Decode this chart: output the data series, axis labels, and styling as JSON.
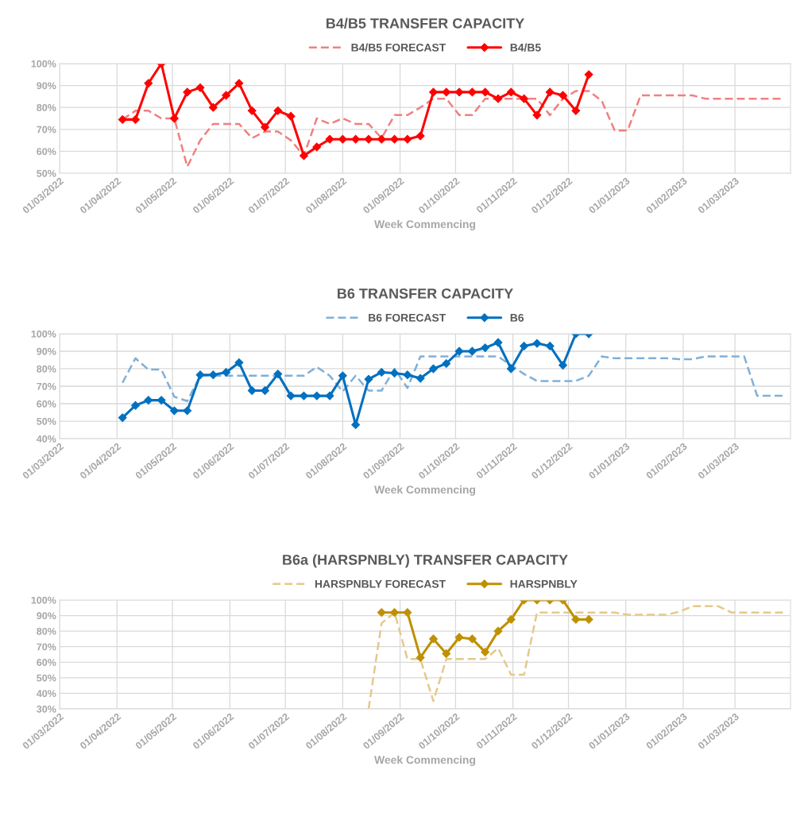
{
  "chart_data": [
    {
      "type": "line",
      "title": "B4/B5 TRANSFER CAPACITY",
      "xlabel": "Week Commencing",
      "legend": "top",
      "grid": true,
      "xlim": [
        "2022-03-01",
        "2023-03-31"
      ],
      "xticks": [
        {
          "value": "2022-03-01",
          "label": "01/03/2022"
        },
        {
          "value": "2022-04-01",
          "label": "01/04/2022"
        },
        {
          "value": "2022-05-01",
          "label": "01/05/2022"
        },
        {
          "value": "2022-06-01",
          "label": "01/06/2022"
        },
        {
          "value": "2022-07-01",
          "label": "01/07/2022"
        },
        {
          "value": "2022-08-01",
          "label": "01/08/2022"
        },
        {
          "value": "2022-09-01",
          "label": "01/09/2022"
        },
        {
          "value": "2022-10-01",
          "label": "01/10/2022"
        },
        {
          "value": "2022-11-01",
          "label": "01/11/2022"
        },
        {
          "value": "2022-12-01",
          "label": "01/12/2022"
        },
        {
          "value": "2023-01-01",
          "label": "01/01/2023"
        },
        {
          "value": "2023-02-01",
          "label": "01/02/2023"
        },
        {
          "value": "2023-03-01",
          "label": "01/03/2023"
        }
      ],
      "ylim": [
        50,
        100
      ],
      "yticks": [
        {
          "value": 50,
          "label": "50%"
        },
        {
          "value": 60,
          "label": "60%"
        },
        {
          "value": 70,
          "label": "70%"
        },
        {
          "value": 80,
          "label": "80%"
        },
        {
          "value": 90,
          "label": "90%"
        },
        {
          "value": 100,
          "label": "100%"
        }
      ],
      "series": [
        {
          "name": "B4/B5 FORECAST",
          "color": "#f08080",
          "marker": "none",
          "line_style": "dashed",
          "x": [
            "2022-04-04",
            "2022-04-11",
            "2022-04-18",
            "2022-04-25",
            "2022-05-02",
            "2022-05-09",
            "2022-05-16",
            "2022-05-23",
            "2022-05-30",
            "2022-06-06",
            "2022-06-13",
            "2022-06-20",
            "2022-06-27",
            "2022-07-04",
            "2022-07-11",
            "2022-07-18",
            "2022-07-25",
            "2022-08-01",
            "2022-08-08",
            "2022-08-15",
            "2022-08-22",
            "2022-08-29",
            "2022-09-05",
            "2022-09-12",
            "2022-09-19",
            "2022-09-26",
            "2022-10-03",
            "2022-10-10",
            "2022-10-17",
            "2022-10-24",
            "2022-10-31",
            "2022-11-07",
            "2022-11-14",
            "2022-11-21",
            "2022-11-28",
            "2022-12-05",
            "2022-12-12",
            "2022-12-19",
            "2022-12-26",
            "2023-01-02",
            "2023-01-09",
            "2023-01-16",
            "2023-01-23",
            "2023-01-30",
            "2023-02-06",
            "2023-02-13",
            "2023-02-20",
            "2023-02-27",
            "2023-03-06",
            "2023-03-13",
            "2023-03-20",
            "2023-03-27"
          ],
          "values": [
            74.5,
            78.5,
            78.5,
            75,
            75,
            53,
            65,
            72.5,
            72.5,
            72.5,
            66,
            69,
            69,
            65,
            58,
            75,
            72.5,
            75,
            72.5,
            72.5,
            66,
            76.5,
            76.5,
            80,
            84,
            84,
            76.5,
            76.5,
            84,
            84,
            84,
            84,
            84,
            76.5,
            84,
            87.5,
            87.5,
            83,
            69.5,
            69.5,
            85.5,
            85.5,
            85.5,
            85.5,
            85.5,
            84,
            84,
            84,
            84,
            84,
            84,
            84
          ]
        },
        {
          "name": "B4/B5",
          "color": "#ff0000",
          "marker": "diamond",
          "line_style": "solid",
          "x": [
            "2022-04-04",
            "2022-04-11",
            "2022-04-18",
            "2022-04-25",
            "2022-05-02",
            "2022-05-09",
            "2022-05-16",
            "2022-05-23",
            "2022-05-30",
            "2022-06-06",
            "2022-06-13",
            "2022-06-20",
            "2022-06-27",
            "2022-07-04",
            "2022-07-11",
            "2022-07-18",
            "2022-07-25",
            "2022-08-01",
            "2022-08-08",
            "2022-08-15",
            "2022-08-22",
            "2022-08-29",
            "2022-09-05",
            "2022-09-12",
            "2022-09-19",
            "2022-09-26",
            "2022-10-03",
            "2022-10-10",
            "2022-10-17",
            "2022-10-24",
            "2022-10-31",
            "2022-11-07",
            "2022-11-14",
            "2022-11-21",
            "2022-11-28",
            "2022-12-05",
            "2022-12-12"
          ],
          "values": [
            74.5,
            74.5,
            91,
            100,
            75,
            87,
            89,
            80,
            85.5,
            91,
            78.5,
            71,
            78.5,
            76,
            58,
            62,
            65.5,
            65.5,
            65.5,
            65.5,
            65.5,
            65.5,
            65.5,
            67,
            87,
            87,
            87,
            87,
            87,
            84,
            87,
            84,
            76.5,
            87,
            85.5,
            78.5,
            95
          ]
        }
      ]
    },
    {
      "type": "line",
      "title": "B6 TRANSFER CAPACITY",
      "xlabel": "Week Commencing",
      "legend": "top",
      "grid": true,
      "xlim": [
        "2022-03-01",
        "2023-03-31"
      ],
      "xticks": [
        {
          "value": "2022-03-01",
          "label": "01/03/2022"
        },
        {
          "value": "2022-04-01",
          "label": "01/04/2022"
        },
        {
          "value": "2022-05-01",
          "label": "01/05/2022"
        },
        {
          "value": "2022-06-01",
          "label": "01/06/2022"
        },
        {
          "value": "2022-07-01",
          "label": "01/07/2022"
        },
        {
          "value": "2022-08-01",
          "label": "01/08/2022"
        },
        {
          "value": "2022-09-01",
          "label": "01/09/2022"
        },
        {
          "value": "2022-10-01",
          "label": "01/10/2022"
        },
        {
          "value": "2022-11-01",
          "label": "01/11/2022"
        },
        {
          "value": "2022-12-01",
          "label": "01/12/2022"
        },
        {
          "value": "2023-01-01",
          "label": "01/01/2023"
        },
        {
          "value": "2023-02-01",
          "label": "01/02/2023"
        },
        {
          "value": "2023-03-01",
          "label": "01/03/2023"
        }
      ],
      "ylim": [
        40,
        100
      ],
      "yticks": [
        {
          "value": 40,
          "label": "40%"
        },
        {
          "value": 50,
          "label": "50%"
        },
        {
          "value": 60,
          "label": "60%"
        },
        {
          "value": 70,
          "label": "70%"
        },
        {
          "value": 80,
          "label": "80%"
        },
        {
          "value": 90,
          "label": "90%"
        },
        {
          "value": 100,
          "label": "100%"
        }
      ],
      "series": [
        {
          "name": "B6 FORECAST",
          "color": "#7fb0d8",
          "marker": "none",
          "line_style": "dashed",
          "x": [
            "2022-04-04",
            "2022-04-11",
            "2022-04-18",
            "2022-04-25",
            "2022-05-02",
            "2022-05-09",
            "2022-05-16",
            "2022-05-23",
            "2022-05-30",
            "2022-06-06",
            "2022-06-13",
            "2022-06-20",
            "2022-06-27",
            "2022-07-04",
            "2022-07-11",
            "2022-07-18",
            "2022-07-25",
            "2022-08-01",
            "2022-08-08",
            "2022-08-15",
            "2022-08-22",
            "2022-08-29",
            "2022-09-05",
            "2022-09-12",
            "2022-09-19",
            "2022-09-26",
            "2022-10-03",
            "2022-10-10",
            "2022-10-17",
            "2022-10-24",
            "2022-10-31",
            "2022-11-07",
            "2022-11-14",
            "2022-11-21",
            "2022-11-28",
            "2022-12-05",
            "2022-12-12",
            "2022-12-19",
            "2022-12-26",
            "2023-01-02",
            "2023-01-09",
            "2023-01-16",
            "2023-01-23",
            "2023-01-30",
            "2023-02-06",
            "2023-02-13",
            "2023-02-20",
            "2023-02-27",
            "2023-03-06",
            "2023-03-13",
            "2023-03-20",
            "2023-03-27"
          ],
          "values": [
            72,
            86,
            79.5,
            79.5,
            64,
            61.5,
            76,
            76,
            76,
            76,
            76,
            76,
            76,
            76,
            76,
            81,
            76,
            67,
            76,
            67.5,
            67.5,
            80,
            69,
            87,
            87,
            87,
            87,
            87,
            87,
            87,
            82,
            77,
            73,
            73,
            73,
            73,
            76,
            87,
            86,
            86,
            86,
            86,
            86,
            85.5,
            85.5,
            87,
            87,
            87,
            87,
            64.5,
            64.5,
            64.5
          ]
        },
        {
          "name": "B6",
          "color": "#0070c0",
          "marker": "diamond",
          "line_style": "solid",
          "x": [
            "2022-04-04",
            "2022-04-11",
            "2022-04-18",
            "2022-04-25",
            "2022-05-02",
            "2022-05-09",
            "2022-05-16",
            "2022-05-23",
            "2022-05-30",
            "2022-06-06",
            "2022-06-13",
            "2022-06-20",
            "2022-06-27",
            "2022-07-04",
            "2022-07-11",
            "2022-07-18",
            "2022-07-25",
            "2022-08-01",
            "2022-08-08",
            "2022-08-15",
            "2022-08-22",
            "2022-08-29",
            "2022-09-05",
            "2022-09-12",
            "2022-09-19",
            "2022-09-26",
            "2022-10-03",
            "2022-10-10",
            "2022-10-17",
            "2022-10-24",
            "2022-10-31",
            "2022-11-07",
            "2022-11-14",
            "2022-11-21",
            "2022-11-28",
            "2022-12-05",
            "2022-12-12"
          ],
          "values": [
            52,
            59,
            62,
            62,
            56,
            56,
            76.5,
            76.5,
            78,
            83.5,
            67.5,
            67.5,
            77,
            64.5,
            64.5,
            64.5,
            64.5,
            76,
            48,
            74,
            78,
            77.5,
            76.5,
            74.5,
            80,
            83,
            90,
            90,
            92,
            95,
            80,
            93,
            94.5,
            93,
            82,
            100,
            100
          ]
        }
      ]
    },
    {
      "type": "line",
      "title": "B6a (HARSPNBLY) TRANSFER CAPACITY",
      "xlabel": "Week Commencing",
      "legend": "top",
      "grid": true,
      "xlim": [
        "2022-03-01",
        "2023-03-31"
      ],
      "xticks": [
        {
          "value": "2022-03-01",
          "label": "01/03/2022"
        },
        {
          "value": "2022-04-01",
          "label": "01/04/2022"
        },
        {
          "value": "2022-05-01",
          "label": "01/05/2022"
        },
        {
          "value": "2022-06-01",
          "label": "01/06/2022"
        },
        {
          "value": "2022-07-01",
          "label": "01/07/2022"
        },
        {
          "value": "2022-08-01",
          "label": "01/08/2022"
        },
        {
          "value": "2022-09-01",
          "label": "01/09/2022"
        },
        {
          "value": "2022-10-01",
          "label": "01/10/2022"
        },
        {
          "value": "2022-11-01",
          "label": "01/11/2022"
        },
        {
          "value": "2022-12-01",
          "label": "01/12/2022"
        },
        {
          "value": "2023-01-01",
          "label": "01/01/2023"
        },
        {
          "value": "2023-02-01",
          "label": "01/02/2023"
        },
        {
          "value": "2023-03-01",
          "label": "01/03/2023"
        }
      ],
      "ylim": [
        30,
        100
      ],
      "yticks": [
        {
          "value": 30,
          "label": "30%"
        },
        {
          "value": 40,
          "label": "40%"
        },
        {
          "value": 50,
          "label": "50%"
        },
        {
          "value": 60,
          "label": "60%"
        },
        {
          "value": 70,
          "label": "70%"
        },
        {
          "value": 80,
          "label": "80%"
        },
        {
          "value": 90,
          "label": "90%"
        },
        {
          "value": 100,
          "label": "100%"
        }
      ],
      "series": [
        {
          "name": "HARSPNBLY FORECAST",
          "color": "#e3c98c",
          "marker": "none",
          "line_style": "dashed",
          "x": [
            "2022-08-15",
            "2022-08-22",
            "2022-08-29",
            "2022-09-05",
            "2022-09-12",
            "2022-09-19",
            "2022-09-26",
            "2022-10-03",
            "2022-10-10",
            "2022-10-17",
            "2022-10-24",
            "2022-10-31",
            "2022-11-07",
            "2022-11-14",
            "2022-11-21",
            "2022-11-28",
            "2022-12-05",
            "2022-12-12",
            "2022-12-19",
            "2022-12-26",
            "2023-01-02",
            "2023-01-09",
            "2023-01-16",
            "2023-01-23",
            "2023-01-30",
            "2023-02-06",
            "2023-02-13",
            "2023-02-20",
            "2023-02-27",
            "2023-03-06",
            "2023-03-13",
            "2023-03-20",
            "2023-03-27"
          ],
          "values": [
            30,
            85,
            92,
            62,
            62,
            35,
            62,
            62,
            62,
            62,
            69,
            52,
            52,
            92,
            92,
            92,
            92,
            92,
            92,
            92,
            90.5,
            90.5,
            90.5,
            90.5,
            92.5,
            96,
            96,
            96,
            92,
            92,
            92,
            92,
            92
          ]
        },
        {
          "name": "HARSPNBLY",
          "color": "#bf9000",
          "marker": "diamond",
          "line_style": "solid",
          "x": [
            "2022-08-22",
            "2022-08-29",
            "2022-09-05",
            "2022-09-12",
            "2022-09-19",
            "2022-09-26",
            "2022-10-03",
            "2022-10-10",
            "2022-10-17",
            "2022-10-24",
            "2022-10-31",
            "2022-11-07",
            "2022-11-14",
            "2022-11-21",
            "2022-11-28",
            "2022-12-05",
            "2022-12-12"
          ],
          "values": [
            92,
            92,
            92,
            63,
            75,
            65.5,
            76,
            75,
            66.5,
            80,
            87.5,
            100,
            100,
            100,
            100,
            87.5,
            87.5
          ]
        }
      ]
    }
  ]
}
